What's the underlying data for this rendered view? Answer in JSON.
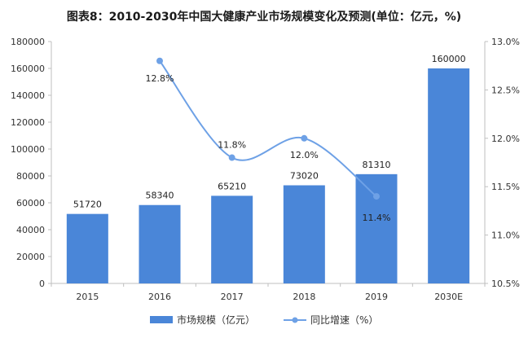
{
  "chart_data": {
    "type": "bar+line",
    "title": "图表8：2010-2030年中国大健康产业市场规模变化及预测(单位：亿元，%)",
    "categories": [
      "2015",
      "2016",
      "2017",
      "2018",
      "2019",
      "2030E"
    ],
    "series": [
      {
        "name": "市场规模（亿元）",
        "type": "bar",
        "axis": "left",
        "color": "#4a86d8",
        "values": [
          51720,
          58340,
          65210,
          73020,
          81310,
          160000
        ],
        "labels": [
          "51720",
          "58340",
          "65210",
          "73020",
          "81310",
          "160000"
        ]
      },
      {
        "name": "同比增速（%）",
        "type": "line",
        "axis": "right",
        "color": "#6ea1e6",
        "values": [
          null,
          12.8,
          11.8,
          12.0,
          11.4,
          null
        ],
        "labels": [
          "",
          "12.8%",
          "11.8%",
          "12.0%",
          "11.4%",
          ""
        ]
      }
    ],
    "y_left": {
      "min": 0,
      "max": 180000,
      "step": 20000,
      "ticks": [
        "0",
        "20000",
        "40000",
        "60000",
        "80000",
        "100000",
        "120000",
        "140000",
        "160000",
        "180000"
      ]
    },
    "y_right": {
      "min": 10.5,
      "max": 13.0,
      "step": 0.5,
      "ticks": [
        "10.5%",
        "11.0%",
        "11.5%",
        "12.0%",
        "12.5%",
        "13.0%"
      ]
    },
    "grid": false,
    "legend_position": "bottom"
  }
}
